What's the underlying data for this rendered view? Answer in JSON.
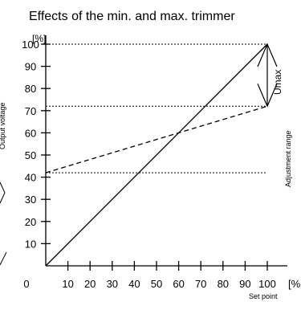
{
  "chart_data": {
    "type": "line",
    "title": "Effects of the min. and max. trimmer",
    "xlabel": "Set point",
    "ylabel": "Output voltage",
    "x_unit": "[%",
    "y_unit": "[%]",
    "x_ticks": [
      "0",
      "10",
      "20",
      "30",
      "40",
      "50",
      "60",
      "70",
      "80",
      "90",
      "100"
    ],
    "y_ticks": [
      "10",
      "20",
      "30",
      "40",
      "50",
      "60",
      "70",
      "80",
      "90",
      "100"
    ],
    "xlim": [
      0,
      100
    ],
    "ylim": [
      0,
      100
    ],
    "series": [
      {
        "style": "solid",
        "x": [
          0,
          100
        ],
        "y": [
          0,
          100
        ]
      },
      {
        "style": "dashed",
        "x": [
          0,
          100
        ],
        "y": [
          42,
          72
        ]
      }
    ],
    "reference_lines": [
      {
        "style": "dotted",
        "y": 100
      },
      {
        "style": "dotted",
        "y": 72
      },
      {
        "style": "dotted",
        "y": 42
      }
    ],
    "annotations": {
      "umax": "Umax",
      "adjustment_range": "Adjustment range"
    }
  }
}
